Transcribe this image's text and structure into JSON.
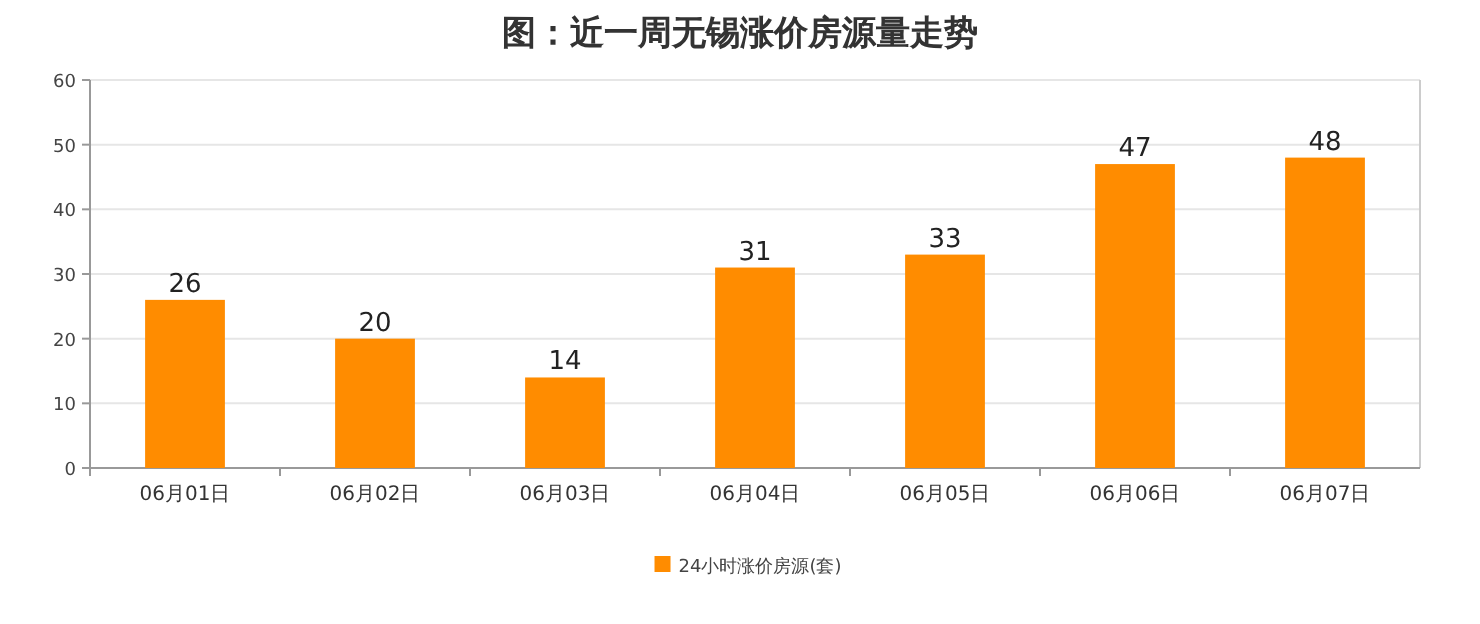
{
  "chart_data": {
    "type": "bar",
    "title": "图：近一周无锡涨价房源量走势",
    "categories": [
      "06月01日",
      "06月02日",
      "06月03日",
      "06月04日",
      "06月05日",
      "06月06日",
      "06月07日"
    ],
    "series": [
      {
        "name": "24小时涨价房源(套)",
        "color": "#ff8c00",
        "values": [
          26,
          20,
          14,
          31,
          33,
          47,
          48
        ]
      }
    ],
    "ylim": [
      0,
      60
    ],
    "yticks": [
      0,
      10,
      20,
      30,
      40,
      50,
      60
    ],
    "grid": "y",
    "legend": "bottom",
    "data_labels": true
  }
}
